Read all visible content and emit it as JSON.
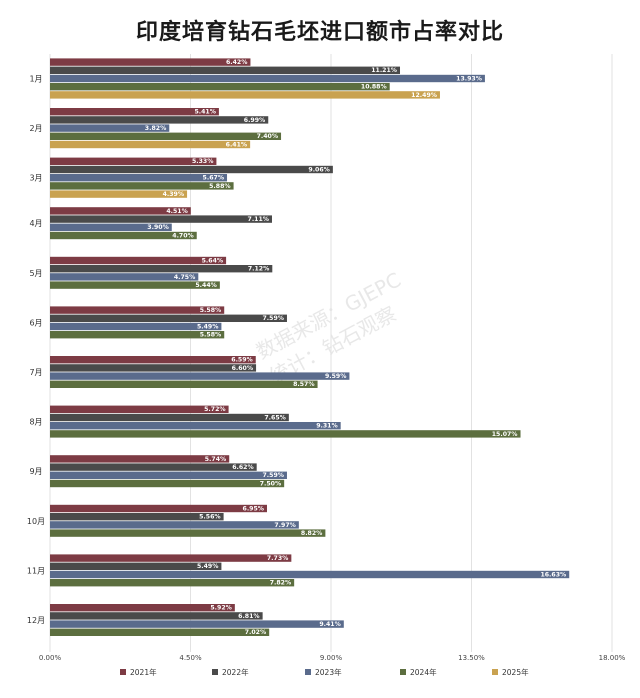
{
  "chart_data": {
    "type": "bar",
    "orientation": "horizontal",
    "title": "印度培育钻石毛坯进口额市占率对比",
    "xlabel": "",
    "ylabel": "",
    "xlim": [
      0,
      18
    ],
    "x_ticks": [
      "0.00%",
      "4.50%",
      "9.00%",
      "13.50%",
      "18.00%"
    ],
    "grid": true,
    "legend_position": "bottom",
    "categories": [
      "1月",
      "2月",
      "3月",
      "4月",
      "5月",
      "6月",
      "7月",
      "8月",
      "9月",
      "10月",
      "11月",
      "12月"
    ],
    "series": [
      {
        "name": "2021年",
        "color": "#7d3b44",
        "values": [
          6.42,
          5.41,
          5.33,
          4.51,
          5.64,
          5.58,
          6.59,
          5.72,
          5.74,
          6.95,
          7.73,
          5.92
        ],
        "labels": [
          "6.42%",
          "5.41%",
          "5.33%",
          "4.51%",
          "5.64%",
          "5.58%",
          "6.59%",
          "5.72%",
          "5.74%",
          "6.95%",
          "7.73%",
          "5.92%"
        ]
      },
      {
        "name": "2022年",
        "color": "#4a4a4a",
        "values": [
          11.21,
          6.99,
          9.06,
          7.11,
          7.12,
          7.59,
          6.6,
          7.65,
          6.62,
          5.56,
          5.49,
          6.81
        ],
        "labels": [
          "11.21%",
          "6.99%",
          "9.06%",
          "7.11%",
          "7.12%",
          "7.59%",
          "6.60%",
          "7.65%",
          "6.62%",
          "5.56%",
          "5.49%",
          "6.81%"
        ]
      },
      {
        "name": "2023年",
        "color": "#5a6b8c",
        "values": [
          13.93,
          3.82,
          5.67,
          3.9,
          4.75,
          5.49,
          9.59,
          9.31,
          7.59,
          7.97,
          16.63,
          9.41
        ],
        "labels": [
          "13.93%",
          "3.82%",
          "5.67%",
          "3.90%",
          "4.75%",
          "5.49%",
          "9.59%",
          "9.31%",
          "7.59%",
          "7.97%",
          "16.63%",
          "9.41%"
        ]
      },
      {
        "name": "2024年",
        "color": "#5c6e3f",
        "values": [
          10.88,
          7.4,
          5.88,
          4.7,
          5.44,
          5.58,
          8.57,
          15.07,
          7.5,
          8.82,
          7.82,
          7.02
        ],
        "labels": [
          "10.88%",
          "7.40%",
          "5.88%",
          "4.70%",
          "5.44%",
          "5.58%",
          "8.57%",
          "15.07%",
          "7.50%",
          "8.82%",
          "7.82%",
          "7.02%"
        ]
      },
      {
        "name": "2025年",
        "color": "#c9a250",
        "values": [
          12.49,
          6.41,
          4.39,
          null,
          null,
          null,
          null,
          null,
          null,
          null,
          null,
          null
        ],
        "labels": [
          "12.49%",
          "6.41%",
          "4.39%",
          "",
          "",
          "",
          "",
          "",
          "",
          "",
          "",
          ""
        ]
      }
    ]
  },
  "watermark": {
    "line1": "数据来源：GJEPC",
    "line2": "统计：钻石观察"
  }
}
